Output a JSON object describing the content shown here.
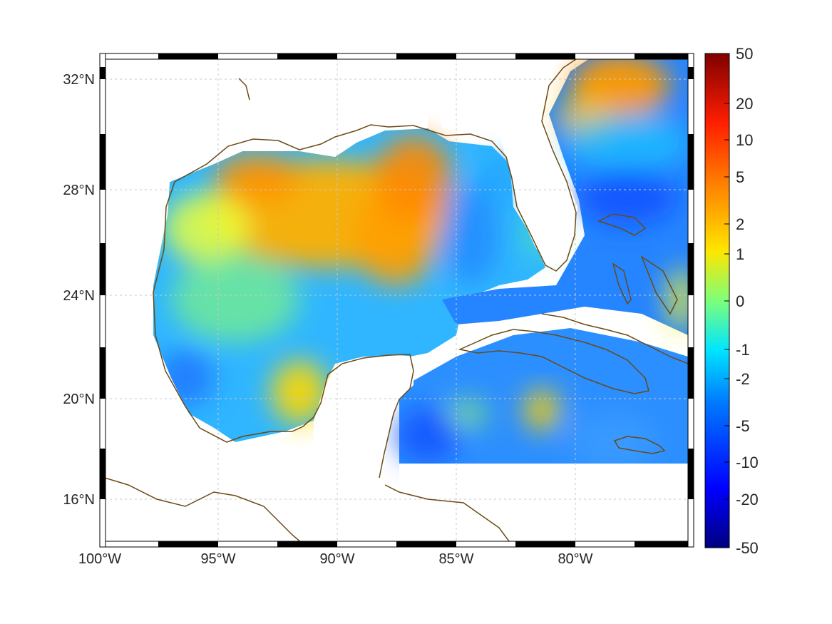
{
  "map": {
    "lon_range": [
      -100,
      -75.2
    ],
    "lat_range": [
      14.3,
      33.0
    ],
    "x_ticks": [
      {
        "value": -100,
        "label": "100°W"
      },
      {
        "value": -95,
        "label": "95°W"
      },
      {
        "value": -90,
        "label": "90°W"
      },
      {
        "value": -85,
        "label": "85°W"
      },
      {
        "value": -80,
        "label": "80°W"
      }
    ],
    "y_ticks": [
      {
        "value": 32,
        "label": "32°N"
      },
      {
        "value": 28,
        "label": "28°N"
      },
      {
        "value": 24,
        "label": "24°N"
      },
      {
        "value": 20,
        "label": "20°N"
      },
      {
        "value": 16,
        "label": "16°N"
      }
    ],
    "grid": true,
    "coastline_color": "#6b4a14"
  },
  "colorbar": {
    "tick_labels": [
      "50",
      "20",
      "10",
      "5",
      "2",
      "1",
      "0",
      "-1",
      "-2",
      "-5",
      "-10",
      "-20",
      "-50"
    ],
    "colormap": "jet",
    "position": "right"
  }
}
